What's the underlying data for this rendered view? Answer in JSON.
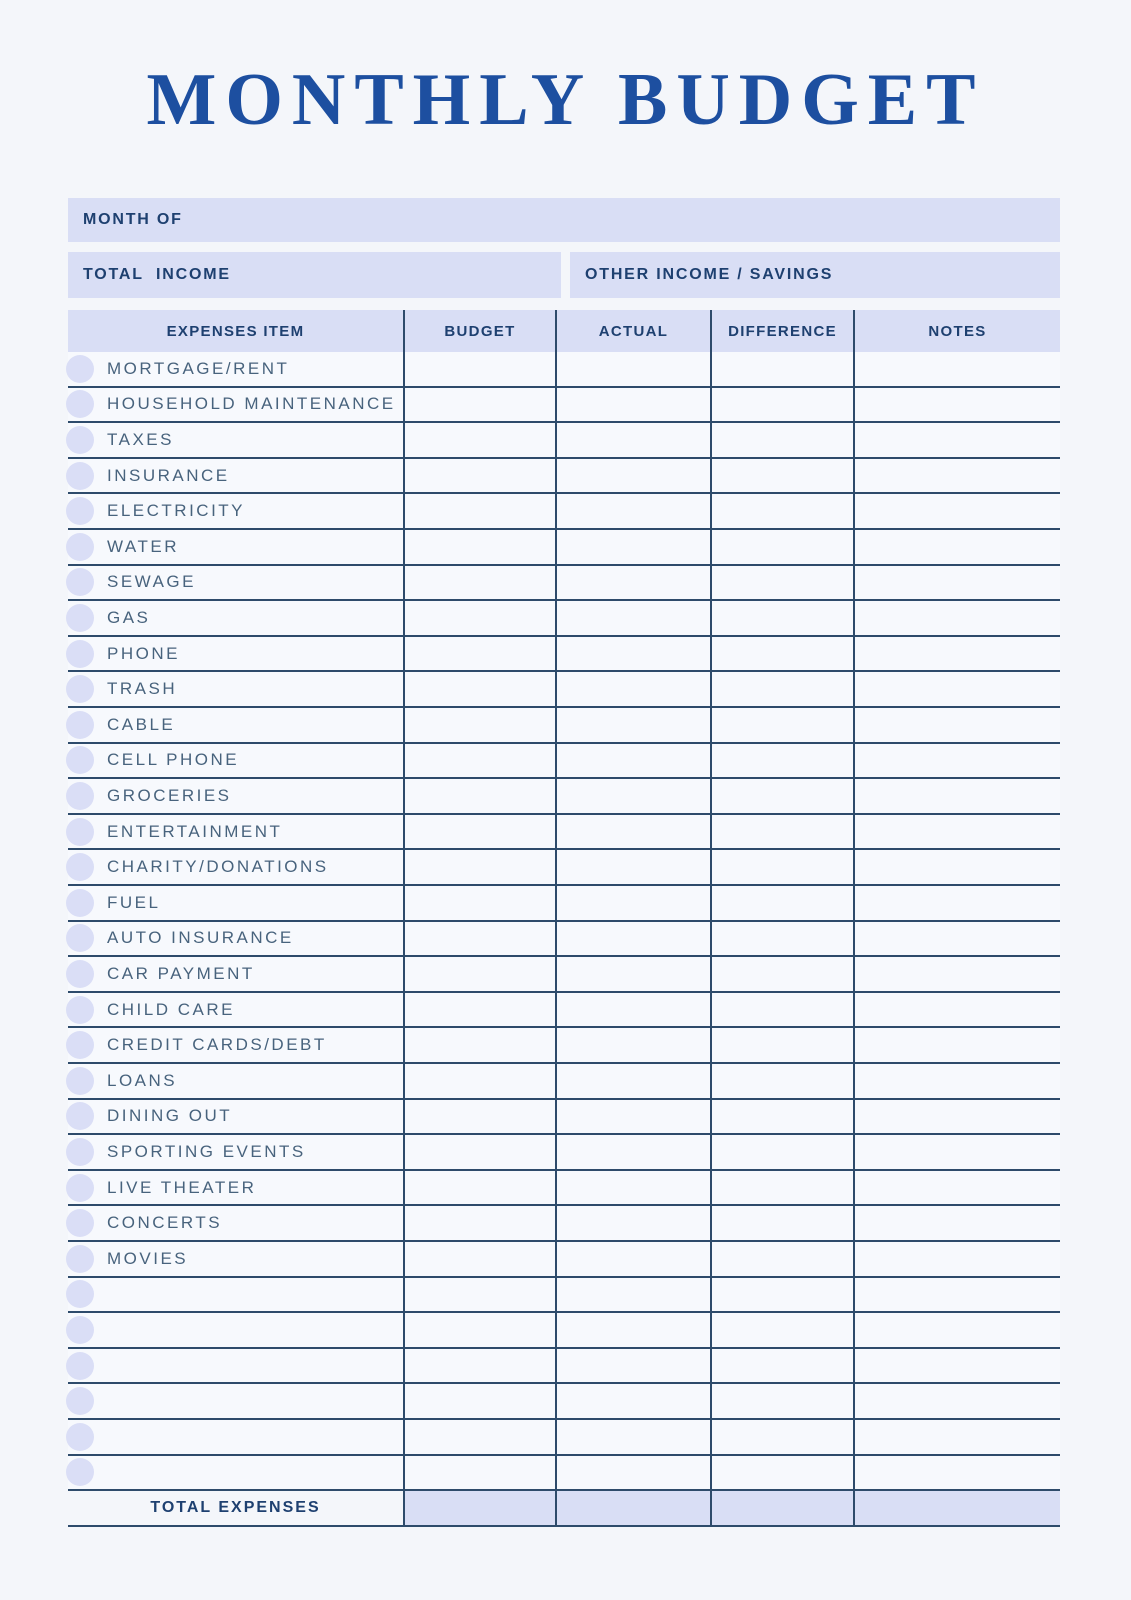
{
  "title": "MONTHLY BUDGET",
  "bars": {
    "month_of": "MONTH OF",
    "total_income": "TOTAL  INCOME",
    "other_income": "OTHER INCOME / SAVINGS"
  },
  "table": {
    "headers": [
      "EXPENSES ITEM",
      "BUDGET",
      "ACTUAL",
      "DIFFERENCE",
      "NOTES"
    ],
    "items": [
      "MORTGAGE/RENT",
      "HOUSEHOLD MAINTENANCE",
      "TAXES",
      "INSURANCE",
      "ELECTRICITY",
      "WATER",
      "SEWAGE",
      "GAS",
      "PHONE",
      "TRASH",
      "CABLE",
      "CELL PHONE",
      "GROCERIES",
      "ENTERTAINMENT",
      "CHARITY/DONATIONS",
      "FUEL",
      "AUTO INSURANCE",
      "CAR PAYMENT",
      "CHILD CARE",
      "CREDIT CARDS/DEBT",
      "LOANS",
      "DINING OUT",
      "SPORTING EVENTS",
      "LIVE THEATER",
      "CONCERTS",
      "MOVIES"
    ],
    "empty_row_count": 6,
    "footer": {
      "label": "TOTAL EXPENSES"
    }
  },
  "colors": {
    "page_bg": "#f4f6fa",
    "row_bg": "#f7f9fd",
    "lavender": "#d9def5",
    "navy": "#1e4070",
    "title_blue": "#1d4fa0",
    "item_text": "#48637d",
    "line": "#2e4b6b",
    "circle": "#dadef6"
  }
}
